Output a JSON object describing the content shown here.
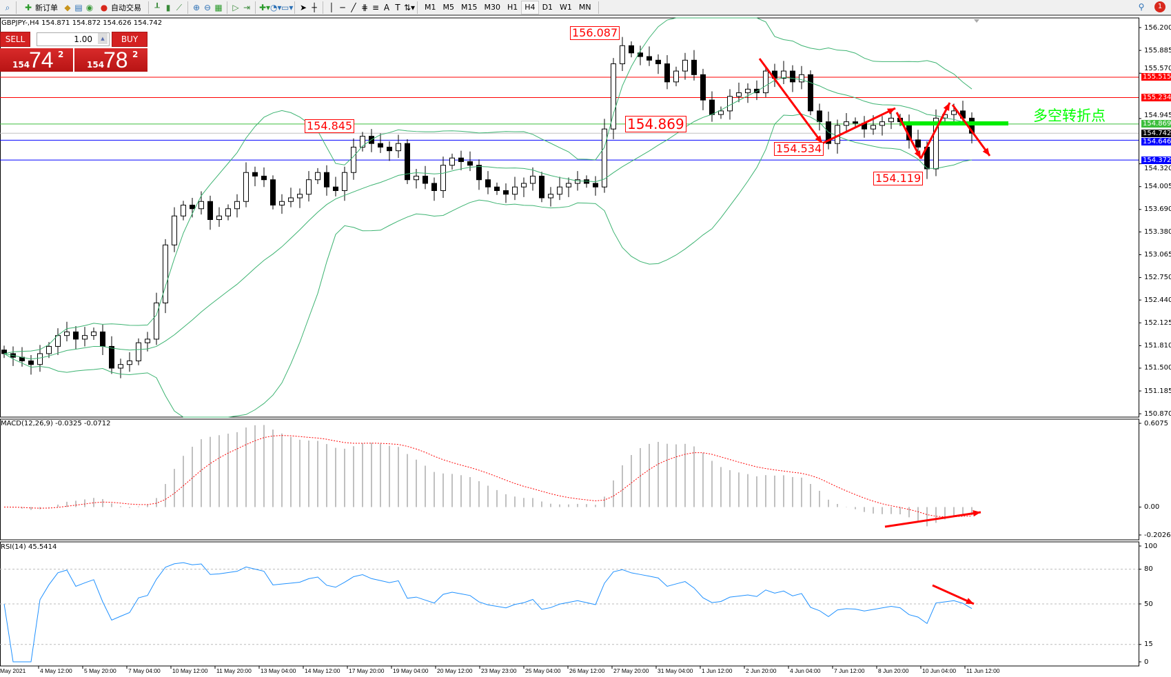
{
  "toolbar": {
    "new_order": "新订单",
    "auto_trading": "自动交易",
    "timeframes": [
      "M1",
      "M5",
      "M15",
      "M30",
      "H1",
      "H4",
      "D1",
      "W1",
      "MN"
    ],
    "active_timeframe": "H4",
    "notification_count": "1",
    "icons": [
      "new-order-icon",
      "metaeditor-icon",
      "market-watch-icon",
      "signals-icon",
      "auto-trading-icon",
      "bar-chart-icon",
      "candlestick-icon",
      "line-chart-icon",
      "zoom-in-icon",
      "zoom-out-icon",
      "tile-windows-icon",
      "autoscroll-icon",
      "chart-shift-icon",
      "indicators-icon",
      "periods-icon",
      "templates-icon",
      "cursor-icon",
      "crosshair-icon",
      "vertical-line-icon",
      "horizontal-line-icon",
      "trendline-icon",
      "fibonacci-icon",
      "fibo-fan-icon",
      "text-icon",
      "text-label-icon",
      "arrows-icon"
    ]
  },
  "symbol_info": "GBPJPY-,H4  154.871 154.872 154.626 154.742",
  "trade_panel": {
    "sell_label": "SELL",
    "buy_label": "BUY",
    "lots": "1.00",
    "sell_price": {
      "prefix": "154",
      "big": "74",
      "sup": "2"
    },
    "buy_price": {
      "prefix": "154",
      "big": "78",
      "sup": "2"
    },
    "color": "#d42121"
  },
  "price_axis": {
    "ticks": [
      "156.200",
      "155.885",
      "155.570",
      "154.945",
      "154.320",
      "154.005",
      "153.690",
      "153.380",
      "153.065",
      "152.750",
      "152.440",
      "152.125",
      "151.810",
      "151.500",
      "151.185",
      "150.870"
    ],
    "range": [
      150.87,
      156.2
    ]
  },
  "levels": [
    {
      "value": "155.515",
      "color": "#ff0000",
      "text_color": "#ffffff"
    },
    {
      "value": "155.234",
      "color": "#ff0000",
      "text_color": "#ffffff"
    },
    {
      "value": "154.869",
      "color": "#3cbe3c",
      "text_color": "#ffffff"
    },
    {
      "value": "154.742",
      "color": "#000000",
      "text_color": "#ffffff",
      "line": "#c0c0c0"
    },
    {
      "value": "154.646",
      "color": "#0000ff",
      "text_color": "#ffffff"
    },
    {
      "value": "154.372",
      "color": "#0000ff",
      "text_color": "#ffffff"
    }
  ],
  "annotations": {
    "boxes": [
      "156.087",
      "154.845",
      "154.869",
      "154.534",
      "154.119"
    ],
    "pivot_text": "多空转折点",
    "pivot_color": "#00ff00",
    "arrow_color": "#ff0000"
  },
  "chart_data": {
    "type": "candlestick",
    "symbol": "GBPJPY-",
    "timeframe": "H4",
    "closes": [
      151.7,
      151.65,
      151.6,
      151.55,
      151.7,
      151.8,
      151.95,
      152.0,
      151.9,
      151.95,
      152.0,
      151.8,
      151.5,
      151.55,
      151.6,
      151.85,
      151.9,
      152.4,
      153.2,
      153.6,
      153.75,
      153.7,
      153.8,
      153.55,
      153.6,
      153.7,
      153.8,
      154.2,
      154.15,
      154.1,
      153.75,
      153.8,
      153.85,
      153.9,
      154.1,
      154.2,
      154.0,
      153.95,
      154.2,
      154.55,
      154.7,
      154.6,
      154.55,
      154.5,
      154.6,
      154.1,
      154.15,
      154.05,
      153.95,
      154.3,
      154.4,
      154.35,
      154.3,
      154.1,
      154.0,
      153.95,
      153.9,
      154.0,
      154.05,
      154.15,
      153.85,
      153.9,
      154.0,
      154.05,
      154.1,
      154.05,
      154.0,
      154.8,
      155.7,
      155.95,
      155.85,
      155.8,
      155.75,
      155.7,
      155.45,
      155.6,
      155.75,
      155.55,
      155.2,
      155.0,
      155.05,
      155.25,
      155.3,
      155.35,
      155.3,
      155.6,
      155.5,
      155.6,
      155.45,
      155.55,
      155.05,
      154.9,
      154.6,
      154.85,
      154.9,
      154.88,
      154.8,
      154.85,
      154.9,
      154.95,
      154.9,
      154.65,
      154.55,
      154.25,
      154.95,
      155.0,
      155.05,
      154.95,
      154.742
    ],
    "time_labels": [
      "May 2021",
      "4 May 12:00",
      "5 May 20:00",
      "7 May 04:00",
      "10 May 12:00",
      "11 May 20:00",
      "13 May 04:00",
      "14 May 12:00",
      "17 May 20:00",
      "19 May 04:00",
      "20 May 12:00",
      "23 May 23:00",
      "25 May 04:00",
      "26 May 12:00",
      "27 May 20:00",
      "31 May 04:00",
      "1 Jun 12:00",
      "2 Jun 20:00",
      "4 Jun 04:00",
      "7 Jun 12:00",
      "8 Jun 20:00",
      "10 Jun 04:00",
      "11 Jun 12:00"
    ],
    "bollinger_color": "#3cb371",
    "macd": {
      "label": "MACD(12,26,9) -0.0325 -0.0712",
      "ticks": [
        "0.6075",
        "0.00",
        "-0.2026"
      ],
      "range": [
        -0.2026,
        0.6075
      ],
      "hist_color": "#c0c0c0",
      "signal_color": "#ff0000"
    },
    "rsi": {
      "label": "RSI(14) 45.5414",
      "ticks": [
        "100",
        "80",
        "50",
        "15",
        "0"
      ],
      "levels": [
        80,
        50,
        15
      ],
      "color": "#1e90ff"
    }
  }
}
